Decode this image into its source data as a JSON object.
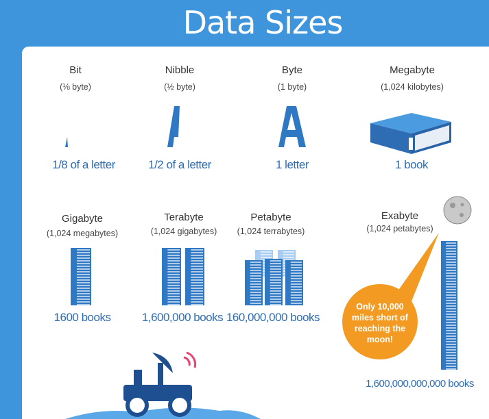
{
  "title": "Data Sizes",
  "items": [
    {
      "name": "Bit",
      "size": "(⅛ byte)",
      "caption": "1/8 of a letter"
    },
    {
      "name": "Nibble",
      "size": "(½ byte)",
      "caption": "1/2 of a letter"
    },
    {
      "name": "Byte",
      "size": "(1 byte)",
      "caption": "1 letter"
    },
    {
      "name": "Megabyte",
      "size": "(1,024 kilobytes)",
      "caption": "1 book"
    },
    {
      "name": "Gigabyte",
      "size": "(1,024 megabytes)",
      "caption": "1600 books"
    },
    {
      "name": "Terabyte",
      "size": "(1,024 gigabytes)",
      "caption": "1,600,000  books"
    },
    {
      "name": "Petabyte",
      "size": "(1,024 terrabytes)",
      "caption": "160,000,000 books"
    },
    {
      "name": "Exabyte",
      "size": "(1,024 petabytes)",
      "caption": "1,600,000,000,000  books"
    }
  ],
  "callout": "Only 10,000 miles short of reaching the moon!"
}
